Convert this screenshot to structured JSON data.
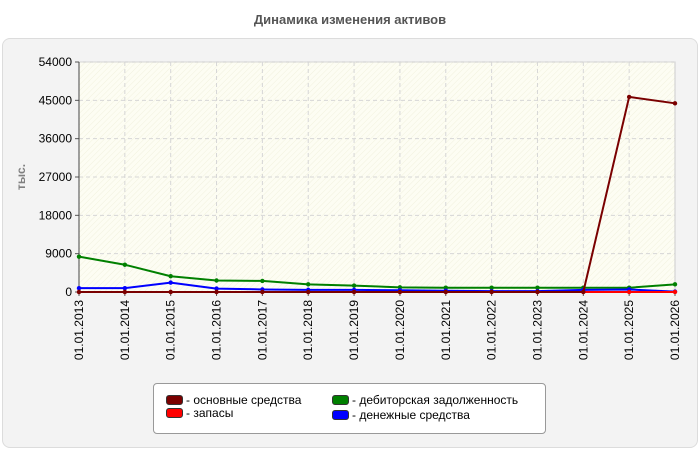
{
  "chart_data": {
    "type": "line",
    "title": "Динамика изменения активов",
    "ylabel": "тыс.",
    "xlabel": "",
    "categories": [
      "01.01.2013",
      "01.01.2014",
      "01.01.2015",
      "01.01.2016",
      "01.01.2017",
      "01.01.2018",
      "01.01.2019",
      "01.01.2020",
      "01.01.2021",
      "01.01.2022",
      "01.01.2023",
      "01.01.2024",
      "01.01.2025",
      "01.01.2026"
    ],
    "ylim": [
      0,
      54000
    ],
    "yticks": [
      "0",
      "9000",
      "18000",
      "27000",
      "36000",
      "45000",
      "54000"
    ],
    "grid": true,
    "legend_position": "bottom",
    "series": [
      {
        "name": "основные средства",
        "color": "#7a0000",
        "values": [
          0,
          0,
          0,
          0,
          0,
          0,
          0,
          0,
          0,
          0,
          0,
          0,
          45800,
          44300
        ]
      },
      {
        "name": "запасы",
        "color": "#ff0000",
        "values": [
          0,
          0,
          0,
          0,
          0,
          0,
          0,
          0,
          0,
          0,
          0,
          0,
          0,
          0
        ]
      },
      {
        "name": "дебиторская задолженность",
        "color": "#008000",
        "values": [
          8300,
          6400,
          3700,
          2700,
          2600,
          1800,
          1500,
          1100,
          1000,
          1000,
          1000,
          1000,
          1000,
          1800
        ]
      },
      {
        "name": "денежные средства",
        "color": "#0000ff",
        "values": [
          900,
          900,
          2200,
          800,
          600,
          500,
          500,
          400,
          300,
          200,
          200,
          500,
          600,
          100
        ]
      }
    ]
  }
}
